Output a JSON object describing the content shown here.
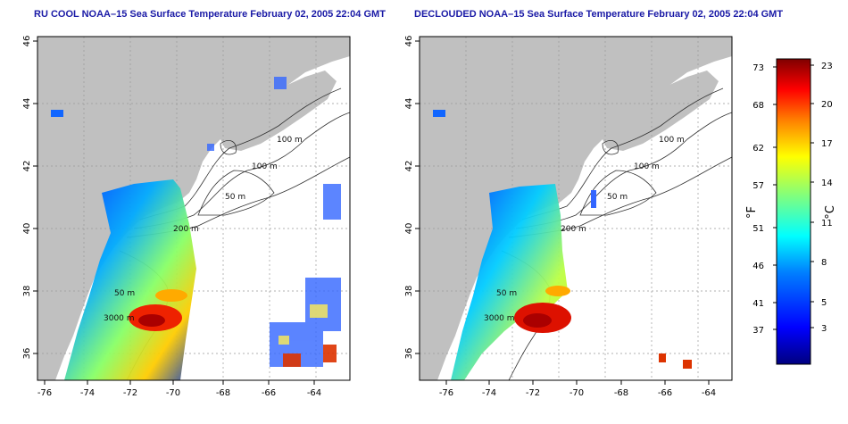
{
  "panels": [
    {
      "title": "RU COOL NOAA–15 Sea Surface Temperature February 02, 2005 22:04 GMT",
      "x_ticks": [
        "-76",
        "-74",
        "-72",
        "-70",
        "-68",
        "-66",
        "-64"
      ],
      "y_ticks": [
        "36",
        "38",
        "40",
        "42",
        "44",
        "46"
      ],
      "contour_labels": [
        "100 m",
        "100 m",
        "50 m",
        "200 m",
        "50 m",
        "3000 m"
      ]
    },
    {
      "title": "DECLOUDED NOAA–15 Sea Surface Temperature February 02, 2005 22:04 GMT",
      "x_ticks": [
        "-76",
        "-74",
        "-72",
        "-70",
        "-68",
        "-66",
        "-64"
      ],
      "y_ticks": [
        "36",
        "38",
        "40",
        "42",
        "44",
        "46"
      ],
      "contour_labels": [
        "100 m",
        "100 m",
        "50 m",
        "200 m",
        "50 m",
        "3000 m"
      ]
    }
  ],
  "colorbar": {
    "f_label": "°F",
    "c_label": "°C",
    "f_ticks": [
      "73",
      "68",
      "62",
      "57",
      "51",
      "46",
      "41",
      "37"
    ],
    "c_ticks": [
      "23",
      "20",
      "17",
      "14",
      "11",
      "8",
      "5",
      "3"
    ],
    "colors": [
      "#00007f",
      "#0000ff",
      "#007fff",
      "#00ffff",
      "#7fff7f",
      "#ffff00",
      "#ff7f00",
      "#ff0000",
      "#7f0000"
    ]
  },
  "colors": {
    "land": "#c0c0c0",
    "ocean": "#ffffff",
    "contour": "#333333",
    "grid": "#999999"
  }
}
